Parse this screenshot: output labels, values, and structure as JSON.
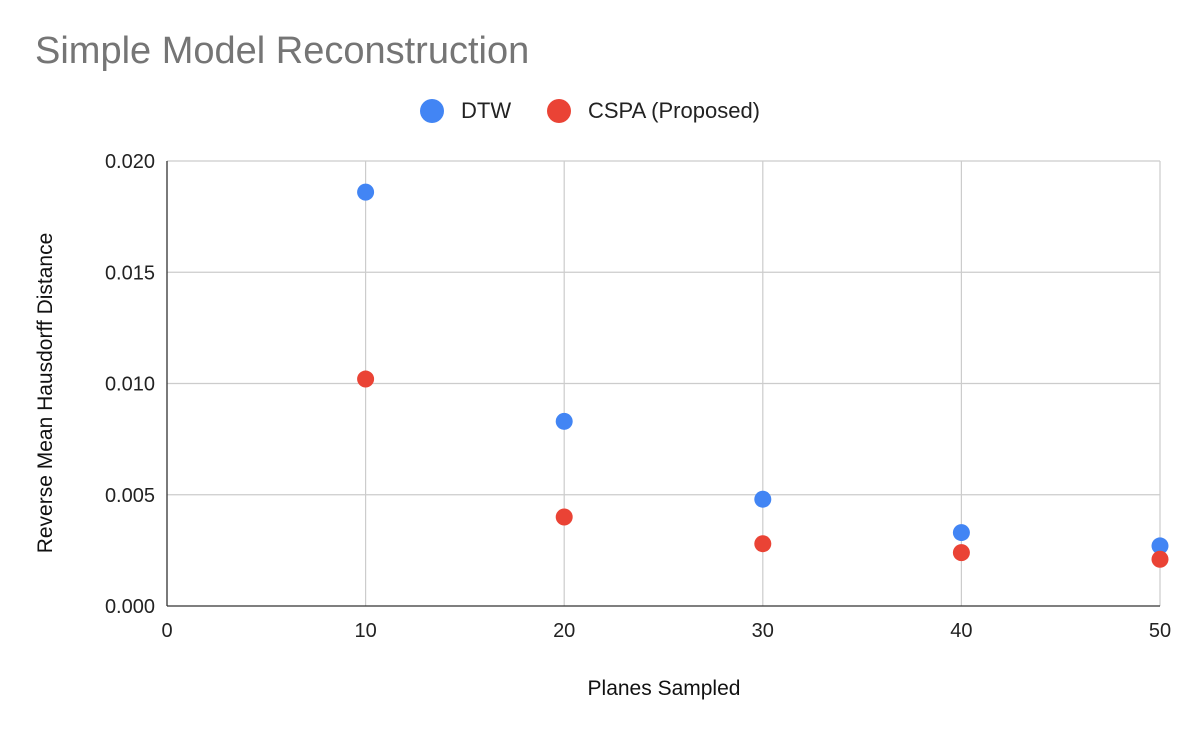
{
  "chart_data": {
    "type": "scatter",
    "title": "Simple Model Reconstruction",
    "xlabel": "Planes Sampled",
    "ylabel": "Reverse Mean Hausdorff Distance",
    "xlim": [
      0,
      50
    ],
    "ylim": [
      0,
      0.02
    ],
    "x_ticks": [
      "0",
      "10",
      "20",
      "30",
      "40",
      "50"
    ],
    "y_ticks": [
      "0.000",
      "0.005",
      "0.010",
      "0.015",
      "0.020"
    ],
    "grid": true,
    "legend_position": "top",
    "series": [
      {
        "name": "DTW",
        "color": "#4285F4",
        "x": [
          10,
          20,
          30,
          40,
          50
        ],
        "y": [
          0.0186,
          0.0083,
          0.0048,
          0.0033,
          0.0027
        ]
      },
      {
        "name": "CSPA (Proposed)",
        "color": "#EA4335",
        "x": [
          10,
          20,
          30,
          40,
          50
        ],
        "y": [
          0.0102,
          0.004,
          0.0028,
          0.0024,
          0.0021
        ]
      }
    ]
  }
}
